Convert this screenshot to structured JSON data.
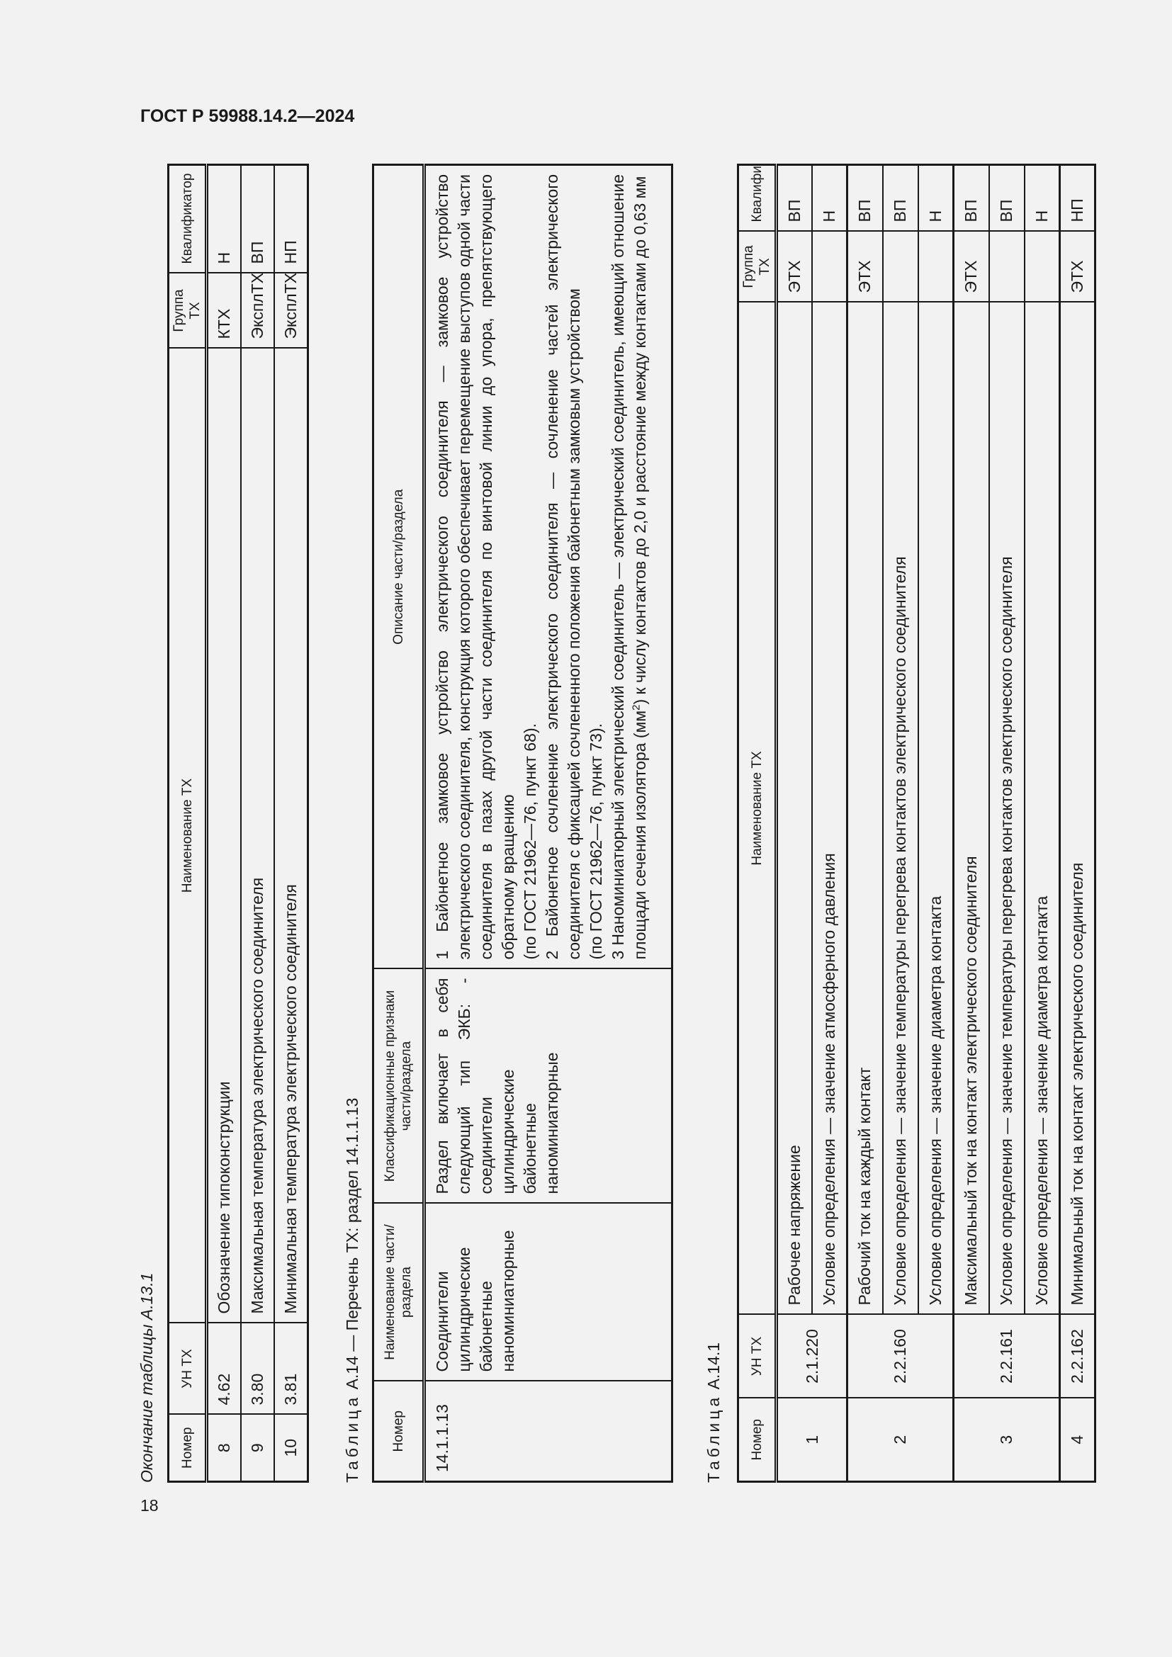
{
  "header": {
    "doc_title": "ГОСТ Р 59988.14.2—2024",
    "page_number": "18"
  },
  "table_a13_1": {
    "caption": "Окончание таблицы А.13.1",
    "columns": [
      "Номер",
      "УН ТХ",
      "Наименование ТХ",
      "Группа ТХ",
      "Квалификатор"
    ],
    "rows": [
      [
        "8",
        "4.62",
        "Обозначение типоконструкции",
        "КТХ",
        "Н"
      ],
      [
        "9",
        "3.80",
        "Максимальная температура электрического соединителя",
        "ЭксплТХ",
        "ВП"
      ],
      [
        "10",
        "3.81",
        "Минимальная температура электрического соединителя",
        "ЭксплТХ",
        "НП"
      ]
    ]
  },
  "table_a14": {
    "caption_label": "Таблица",
    "caption_text": "А.14 — Перечень ТХ: раздел 14.1.1.13",
    "columns": [
      "Номер",
      "Наименование части/раздела",
      "Классификационные признаки части/раздела",
      "Описание части/раздела"
    ],
    "row": {
      "number": "14.1.1.13",
      "name": "Соединители цилиндрические байонетные наноминиатюрные",
      "features": "Раздел включает в себя следующий тип ЭКБ: - соединители цилиндрические байонетные наноминиатюрные",
      "description": [
        "1 Байонетное замковое устройство электрического соединителя — замковое устройство электрического соединителя, конструкция которого обеспечивает перемещение выступов одной части соединителя в пазах другой части соединителя по винтовой линии до упора, препятствующего обратному вращению",
        "(по ГОСТ 21962—76, пункт 68).",
        "2 Байонетное сочленение электрического соединителя — сочленение частей электрического соединителя с фиксацией сочлененного положения байонетным замковым устройством",
        "(по ГОСТ 21962—76, пункт 73).",
        "3 Наноминиатюрный электрический соединитель — электрический соединитель, имеющий отношение площади сечения изолятора (мм",
        "2",
        ") к числу контактов до 2,0 и расстояние между контактами до 0,63 мм"
      ]
    }
  },
  "table_a14_1": {
    "caption_label": "Таблица",
    "caption_text": "А.14.1",
    "columns": [
      "Номер",
      "УН ТХ",
      "Наименование ТХ",
      "Группа ТХ",
      "Квалификатор"
    ],
    "groups": [
      {
        "number": "1",
        "code": "2.1.220",
        "rows": [
          {
            "name": "Рабочее напряжение",
            "group": "ЭТХ",
            "qual": "ВП"
          },
          {
            "name": "Условие определения — значение атмосферного давления",
            "group": "",
            "qual": "Н"
          }
        ]
      },
      {
        "number": "2",
        "code": "2.2.160",
        "rows": [
          {
            "name": "Рабочий ток на каждый контакт",
            "group": "ЭТХ",
            "qual": "ВП"
          },
          {
            "name": "Условие определения — значение температуры перегрева контактов электрического соединителя",
            "group": "",
            "qual": "ВП"
          },
          {
            "name": "Условие определения — значение диаметра контакта",
            "group": "",
            "qual": "Н"
          }
        ]
      },
      {
        "number": "3",
        "code": "2.2.161",
        "rows": [
          {
            "name": "Максимальный ток на контакт электрического соединителя",
            "group": "ЭТХ",
            "qual": "ВП"
          },
          {
            "name": "Условие определения — значение температуры перегрева контактов электрического соединителя",
            "group": "",
            "qual": "ВП"
          },
          {
            "name": "Условие определения — значение диаметра контакта",
            "group": "",
            "qual": "Н"
          }
        ]
      },
      {
        "number": "4",
        "code": "2.2.162",
        "rows": [
          {
            "name": "Минимальный ток на контакт электрического соединителя",
            "group": "ЭТХ",
            "qual": "НП"
          }
        ]
      }
    ]
  }
}
